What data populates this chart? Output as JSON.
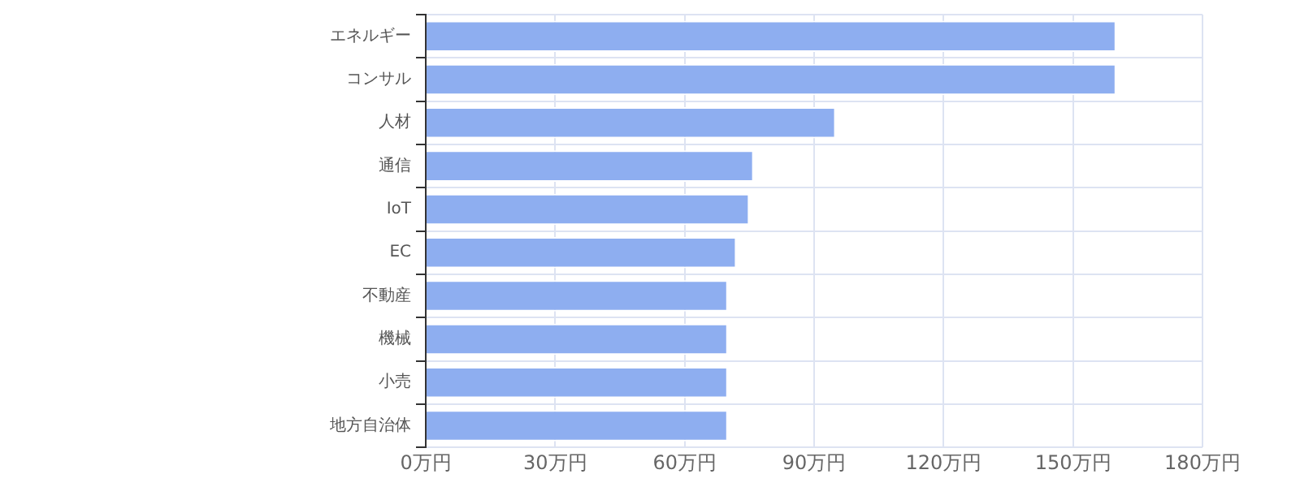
{
  "chart_data": {
    "type": "bar",
    "orientation": "horizontal",
    "categories": [
      "エネルギー",
      "コンサル",
      "人材",
      "通信",
      "IoT",
      "EC",
      "不動産",
      "機械",
      "小売",
      "地方自治体"
    ],
    "values": [
      160,
      160,
      95,
      76,
      75,
      72,
      70,
      70,
      70,
      70
    ],
    "color": "#8eaef0",
    "xlim": [
      0,
      180
    ],
    "xticks": [
      {
        "value": 0,
        "label": "0万円"
      },
      {
        "value": 30,
        "label": "30万円"
      },
      {
        "value": 60,
        "label": "60万円"
      },
      {
        "value": 90,
        "label": "90万円"
      },
      {
        "value": 120,
        "label": "120万円"
      },
      {
        "value": 150,
        "label": "150万円"
      },
      {
        "value": 180,
        "label": "180万円"
      }
    ],
    "grid": true,
    "legend": false
  }
}
